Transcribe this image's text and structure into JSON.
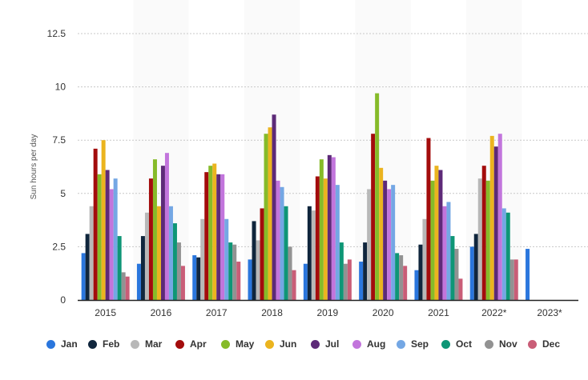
{
  "chart_data": {
    "type": "bar",
    "title": "",
    "xlabel": "",
    "ylabel": "Sun hours per day",
    "ylim": [
      0,
      12.5
    ],
    "yticks": [
      "0",
      "2.5",
      "5",
      "7.5",
      "10",
      "12.5"
    ],
    "grid": true,
    "legend_position": "bottom",
    "categories": [
      "2015",
      "2016",
      "2017",
      "2018",
      "2019",
      "2020",
      "2021",
      "2022*",
      "2023*"
    ],
    "series": [
      {
        "name": "Jan",
        "color": "#2a76dd",
        "values": [
          2.2,
          1.7,
          2.1,
          1.9,
          1.7,
          1.8,
          1.4,
          2.5,
          2.4
        ]
      },
      {
        "name": "Feb",
        "color": "#10263d",
        "values": [
          3.1,
          3.0,
          2.0,
          3.7,
          4.4,
          2.7,
          2.6,
          3.1,
          null
        ]
      },
      {
        "name": "Mar",
        "color": "#b8b8b8",
        "values": [
          4.4,
          4.1,
          3.8,
          2.8,
          4.2,
          5.2,
          3.8,
          5.7,
          null
        ]
      },
      {
        "name": "Apr",
        "color": "#a30c0c",
        "values": [
          7.1,
          5.7,
          6.0,
          4.3,
          5.8,
          7.8,
          7.6,
          6.3,
          null
        ]
      },
      {
        "name": "May",
        "color": "#86bb29",
        "values": [
          5.9,
          6.6,
          6.3,
          7.8,
          6.6,
          9.7,
          5.6,
          5.6,
          null
        ]
      },
      {
        "name": "Jun",
        "color": "#ebb41f",
        "values": [
          7.5,
          4.4,
          6.4,
          8.1,
          5.7,
          6.2,
          6.3,
          7.7,
          null
        ]
      },
      {
        "name": "Jul",
        "color": "#5d2a78",
        "values": [
          6.1,
          6.3,
          5.9,
          8.7,
          6.8,
          5.6,
          6.1,
          7.2,
          null
        ]
      },
      {
        "name": "Aug",
        "color": "#c275dc",
        "values": [
          5.2,
          6.9,
          5.9,
          5.6,
          6.7,
          5.2,
          4.4,
          7.8,
          null
        ]
      },
      {
        "name": "Sep",
        "color": "#74a7e4",
        "values": [
          5.7,
          4.4,
          3.8,
          5.3,
          5.4,
          5.4,
          4.6,
          4.3,
          null
        ]
      },
      {
        "name": "Oct",
        "color": "#0e9676",
        "values": [
          3.0,
          3.6,
          2.7,
          4.4,
          2.7,
          2.2,
          3.0,
          4.1,
          null
        ]
      },
      {
        "name": "Nov",
        "color": "#929292",
        "values": [
          1.3,
          2.7,
          2.6,
          2.5,
          1.7,
          2.1,
          2.4,
          1.9,
          null
        ]
      },
      {
        "name": "Dec",
        "color": "#c95d77",
        "values": [
          1.1,
          1.6,
          1.8,
          1.4,
          1.9,
          1.6,
          1.0,
          1.9,
          null
        ]
      }
    ]
  }
}
